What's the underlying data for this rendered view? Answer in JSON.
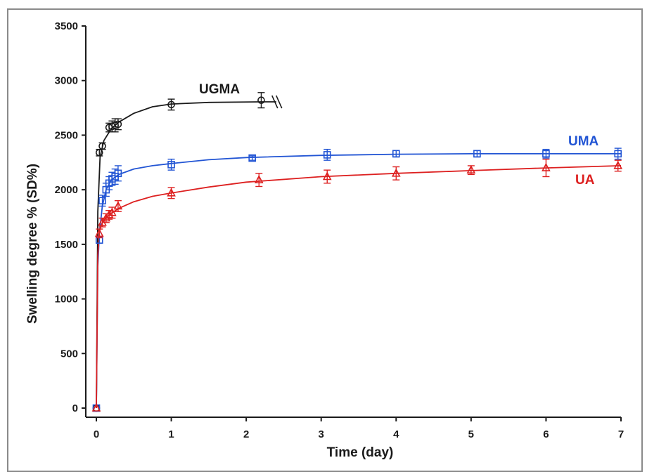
{
  "chart_data": {
    "type": "line",
    "xlabel": "Time (day)",
    "ylabel": "Swelling degree %  (SD%)",
    "xlim": [
      0,
      7
    ],
    "ylim": [
      0,
      3500
    ],
    "xticks": [
      0,
      1,
      2,
      3,
      4,
      5,
      6,
      7
    ],
    "yticks": [
      0,
      500,
      1000,
      1500,
      2000,
      2500,
      3000,
      3500
    ],
    "grid": false,
    "legend": "inline labels next to curves",
    "series": [
      {
        "name": "UGMA",
        "color": "#1a1a1a",
        "marker": "circle",
        "x": [
          0,
          0.04,
          0.08,
          0.17,
          0.21,
          0.25,
          0.29,
          1.0,
          2.2
        ],
        "y": [
          0,
          2340,
          2400,
          2570,
          2580,
          2590,
          2600,
          2780,
          2820
        ],
        "err": [
          0,
          30,
          30,
          40,
          50,
          60,
          50,
          50,
          70
        ],
        "fit": [
          [
            0,
            0
          ],
          [
            0.02,
            1800
          ],
          [
            0.05,
            2300
          ],
          [
            0.1,
            2450
          ],
          [
            0.2,
            2560
          ],
          [
            0.3,
            2620
          ],
          [
            0.5,
            2700
          ],
          [
            0.75,
            2760
          ],
          [
            1.0,
            2785
          ],
          [
            1.5,
            2800
          ],
          [
            2.2,
            2805
          ],
          [
            2.4,
            2805
          ]
        ],
        "break": true
      },
      {
        "name": "UMA",
        "color": "#2255d4",
        "marker": "square",
        "x": [
          0,
          0.04,
          0.08,
          0.13,
          0.17,
          0.21,
          0.25,
          0.29,
          1.0,
          2.08,
          3.08,
          4.0,
          5.08,
          6.0,
          6.96
        ],
        "y": [
          0,
          1540,
          1900,
          2000,
          2060,
          2100,
          2120,
          2150,
          2230,
          2290,
          2320,
          2330,
          2330,
          2330,
          2330
        ],
        "err": [
          0,
          30,
          50,
          60,
          60,
          60,
          70,
          70,
          50,
          20,
          50,
          30,
          30,
          40,
          50
        ],
        "fit": [
          [
            0,
            0
          ],
          [
            0.02,
            1300
          ],
          [
            0.04,
            1600
          ],
          [
            0.08,
            1850
          ],
          [
            0.13,
            2000
          ],
          [
            0.2,
            2090
          ],
          [
            0.3,
            2140
          ],
          [
            0.5,
            2190
          ],
          [
            0.75,
            2220
          ],
          [
            1.0,
            2240
          ],
          [
            1.5,
            2275
          ],
          [
            2.0,
            2295
          ],
          [
            3.0,
            2315
          ],
          [
            4.0,
            2325
          ],
          [
            5.0,
            2330
          ],
          [
            6.0,
            2330
          ],
          [
            7.0,
            2330
          ]
        ]
      },
      {
        "name": "UA",
        "color": "#dd2020",
        "marker": "triangle",
        "x": [
          0,
          0.04,
          0.08,
          0.13,
          0.17,
          0.21,
          0.29,
          1.0,
          2.17,
          3.08,
          4.0,
          5.0,
          6.0,
          6.96
        ],
        "y": [
          0,
          1600,
          1700,
          1740,
          1770,
          1790,
          1850,
          1970,
          2090,
          2120,
          2150,
          2180,
          2200,
          2220
        ],
        "err": [
          0,
          40,
          40,
          40,
          40,
          50,
          50,
          50,
          60,
          60,
          60,
          40,
          80,
          50
        ],
        "fit": [
          [
            0,
            0
          ],
          [
            0.02,
            1400
          ],
          [
            0.04,
            1620
          ],
          [
            0.08,
            1700
          ],
          [
            0.13,
            1745
          ],
          [
            0.2,
            1785
          ],
          [
            0.3,
            1830
          ],
          [
            0.5,
            1890
          ],
          [
            0.75,
            1940
          ],
          [
            1.0,
            1970
          ],
          [
            1.5,
            2025
          ],
          [
            2.0,
            2070
          ],
          [
            3.0,
            2120
          ],
          [
            4.0,
            2150
          ],
          [
            5.0,
            2175
          ],
          [
            6.0,
            2200
          ],
          [
            7.0,
            2220
          ]
        ]
      }
    ]
  }
}
